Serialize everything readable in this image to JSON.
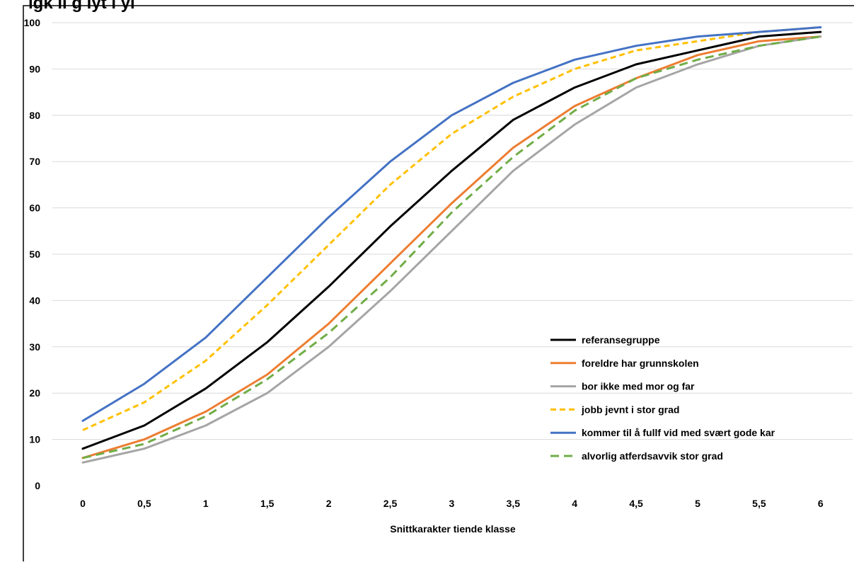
{
  "chart_data": {
    "type": "line",
    "title": "igk  ll g   lyt  l  yl",
    "xlabel": "Snittkarakter tiende klasse",
    "ylabel": "",
    "ylim": [
      0,
      100
    ],
    "yticks": [
      "0",
      "10",
      "20",
      "30",
      "40",
      "50",
      "60",
      "70",
      "80",
      "90",
      "100"
    ],
    "categories": [
      "0",
      "0,5",
      "1",
      "1,5",
      "2",
      "2,5",
      "3",
      "3,5",
      "4",
      "4,5",
      "5",
      "5,5",
      "6"
    ],
    "grid": "horizontal",
    "legend_position": "right",
    "series": [
      {
        "name": "referansegruppe",
        "color": "#000000",
        "dash": "solid",
        "values": [
          8,
          13,
          21,
          31,
          43,
          56,
          68,
          79,
          86,
          91,
          94,
          97,
          98
        ]
      },
      {
        "name": "foreldre har grunnskolen",
        "color": "#ED7D31",
        "dash": "solid",
        "values": [
          6,
          10,
          16,
          24,
          35,
          48,
          61,
          73,
          82,
          88,
          93,
          96,
          97
        ]
      },
      {
        "name": "bor ikke med mor og far",
        "color": "#A5A5A5",
        "dash": "solid",
        "values": [
          5,
          8,
          13,
          20,
          30,
          42,
          55,
          68,
          78,
          86,
          91,
          95,
          97
        ]
      },
      {
        "name": "jobb jevnt i stor grad",
        "color": "#FFC000",
        "dash": "short",
        "values": [
          12,
          18,
          27,
          39,
          52,
          65,
          76,
          84,
          90,
          94,
          96,
          98,
          99
        ]
      },
      {
        "name": "kommer til å fullf vid med svært gode kar",
        "color": "#4472C4",
        "dash": "solid",
        "values": [
          14,
          22,
          32,
          45,
          58,
          70,
          80,
          87,
          92,
          95,
          97,
          98,
          99
        ]
      },
      {
        "name": "alvorlig atferdsavvik stor grad",
        "color": "#70AD47",
        "dash": "long",
        "values": [
          6,
          9,
          15,
          23,
          33,
          45,
          59,
          71,
          81,
          88,
          92,
          95,
          97
        ]
      }
    ]
  }
}
